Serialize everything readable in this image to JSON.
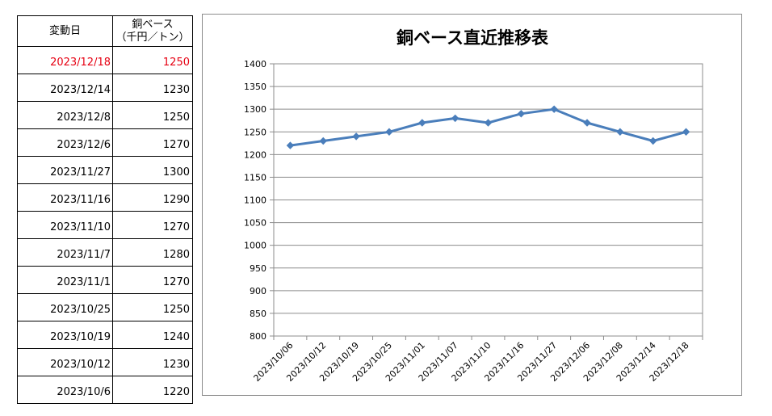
{
  "table": {
    "header": {
      "date": "変動日",
      "price_line1": "銅ベース",
      "price_line2": "（千円／トン）"
    },
    "rows": [
      {
        "date": "2023/12/18",
        "price": "1250",
        "highlight": true
      },
      {
        "date": "2023/12/14",
        "price": "1230"
      },
      {
        "date": "2023/12/8",
        "price": "1250"
      },
      {
        "date": "2023/12/6",
        "price": "1270"
      },
      {
        "date": "2023/11/27",
        "price": "1300"
      },
      {
        "date": "2023/11/16",
        "price": "1290"
      },
      {
        "date": "2023/11/10",
        "price": "1270"
      },
      {
        "date": "2023/11/7",
        "price": "1280"
      },
      {
        "date": "2023/11/1",
        "price": "1270"
      },
      {
        "date": "2023/10/25",
        "price": "1250"
      },
      {
        "date": "2023/10/19",
        "price": "1240"
      },
      {
        "date": "2023/10/12",
        "price": "1230"
      },
      {
        "date": "2023/10/6",
        "price": "1220"
      }
    ],
    "highlight_color": "#e60012"
  },
  "chart_data": {
    "type": "line",
    "title": "銅ベース直近推移表",
    "xlabel": "",
    "ylabel": "",
    "categories": [
      "2023/10/06",
      "2023/10/12",
      "2023/10/19",
      "2023/10/25",
      "2023/11/01",
      "2023/11/07",
      "2023/11/10",
      "2023/11/16",
      "2023/11/27",
      "2023/12/06",
      "2023/12/08",
      "2023/12/14",
      "2023/12/18"
    ],
    "series": [
      {
        "values": [
          1220,
          1230,
          1240,
          1250,
          1270,
          1280,
          1270,
          1290,
          1300,
          1270,
          1250,
          1230,
          1250
        ],
        "color": "#4a7ebb",
        "marker": "diamond"
      }
    ],
    "ylim": [
      800,
      1400
    ],
    "ytick_step": 50,
    "grid": true,
    "legend": "none"
  }
}
